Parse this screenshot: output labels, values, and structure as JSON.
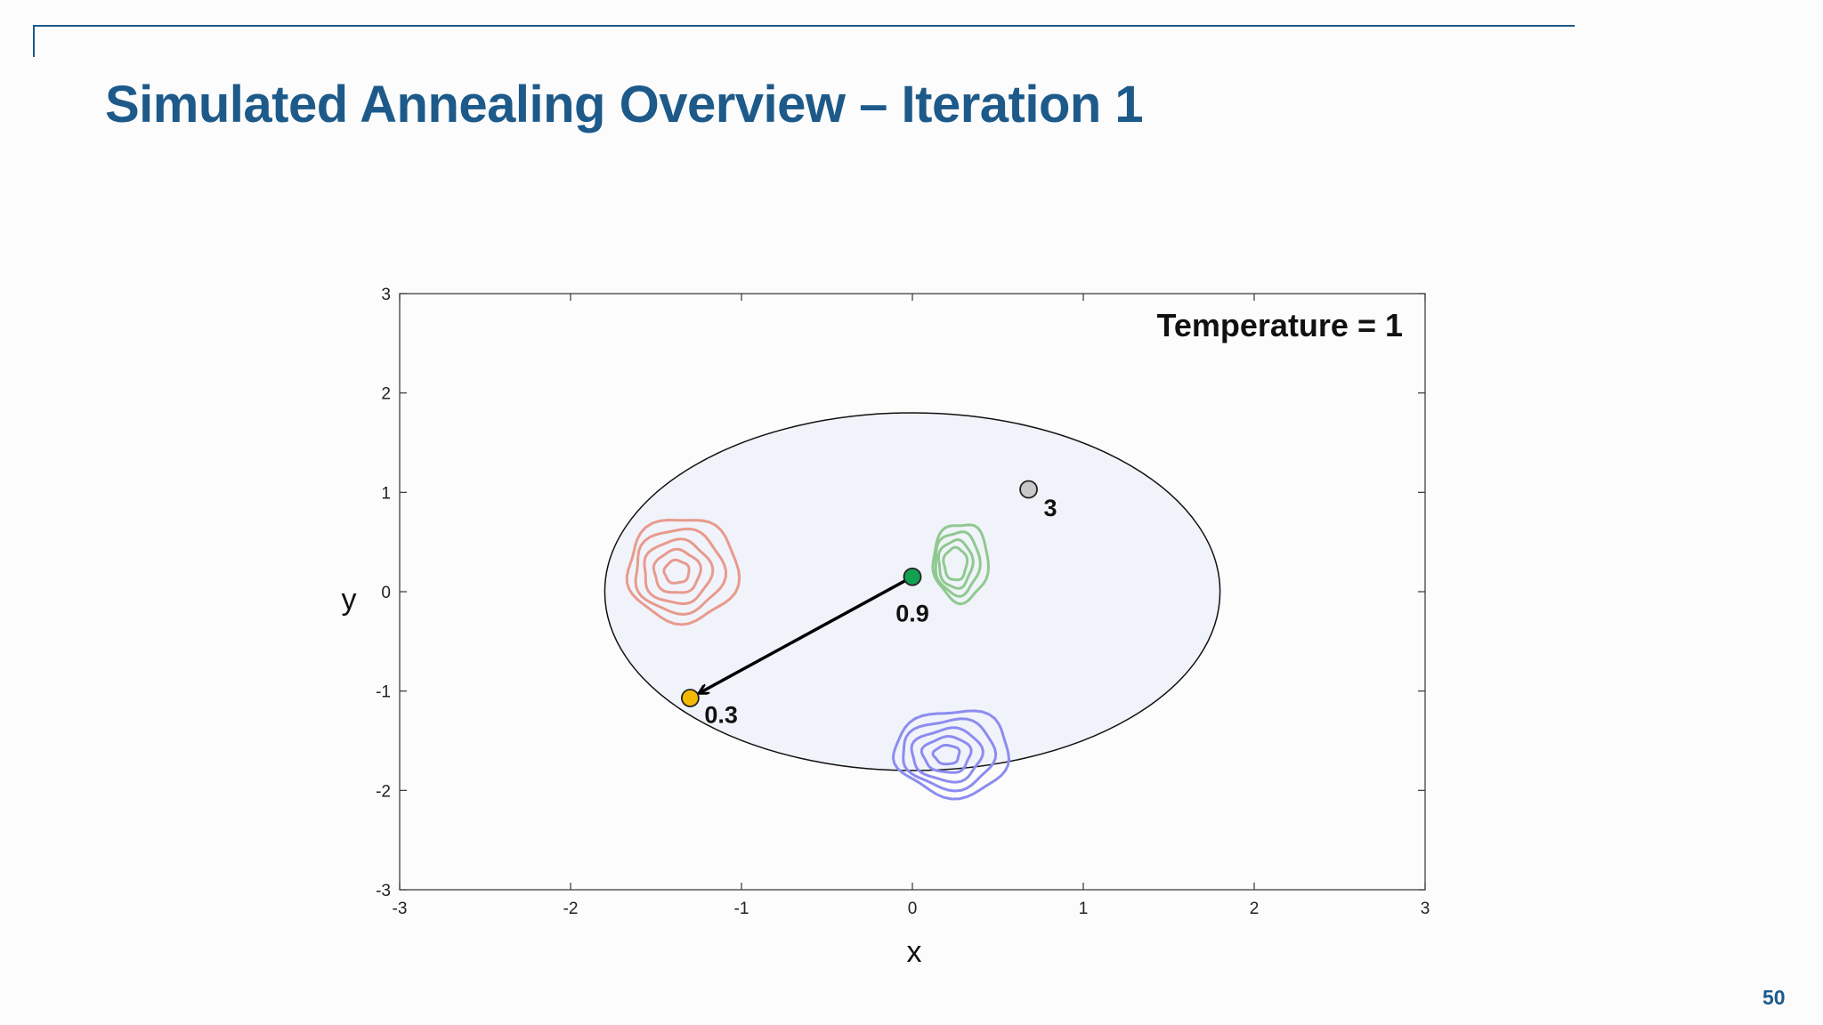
{
  "slide": {
    "title": "Simulated Annealing Overview – Iteration 1",
    "page_number": "50",
    "accent_color": "#1d5a8a"
  },
  "chart_data": {
    "type": "scatter",
    "title": "",
    "xlabel": "x",
    "ylabel": "y",
    "xlim": [
      -3,
      3
    ],
    "ylim": [
      -3,
      3
    ],
    "x_ticks": [
      "-3",
      "-2",
      "-1",
      "0",
      "1",
      "2",
      "3"
    ],
    "y_ticks": [
      "3",
      "2",
      "1",
      "0",
      "-1",
      "-2",
      "-3"
    ],
    "grid": false,
    "annotation": "Temperature = 1",
    "neighborhood_circle": {
      "center": [
        0,
        0
      ],
      "radius": 1.8,
      "fill": "#f1f3fa"
    },
    "points": [
      {
        "role": "current",
        "x": 0,
        "y": 0.15,
        "label": "0.9",
        "color": "#12a150"
      },
      {
        "role": "candidate",
        "x": -1.3,
        "y": -1.07,
        "label": "0.3",
        "color": "#f5b800"
      },
      {
        "role": "previous",
        "x": 0.68,
        "y": 1.03,
        "label": "3",
        "color": "#c8c8c8"
      }
    ],
    "move_arrow": {
      "from": [
        0,
        0.15
      ],
      "to": [
        -1.3,
        -1.07
      ]
    },
    "contours": [
      {
        "color": "#e89a8d",
        "center": [
          -1.35,
          0.22
        ],
        "levels": 5
      },
      {
        "color": "#8fc98f",
        "center": [
          0.28,
          0.3
        ],
        "levels": 4
      },
      {
        "color": "#8c8cf0",
        "center": [
          0.23,
          -1.62
        ],
        "levels": 5
      }
    ]
  }
}
